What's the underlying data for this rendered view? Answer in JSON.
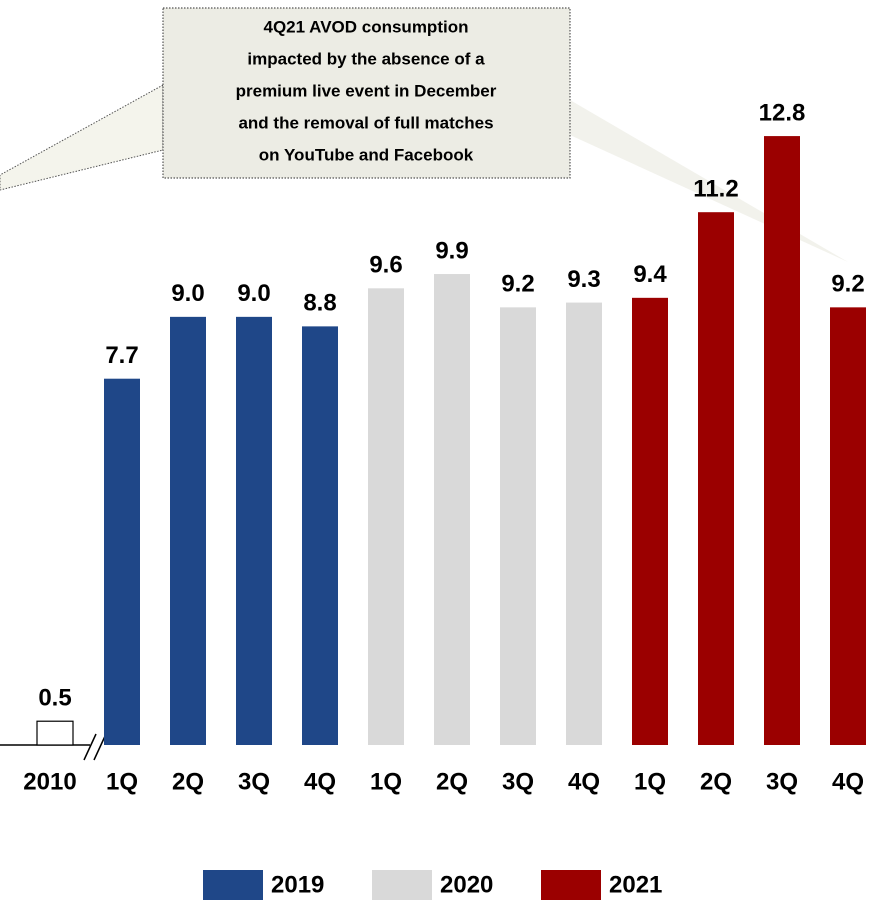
{
  "chart_data": {
    "type": "bar",
    "annotation": [
      "4Q21 AVOD consumption",
      "impacted by the absence of a",
      "premium live event in December",
      "and the removal of full matches",
      "on YouTube and Facebook"
    ],
    "categories": [
      "2010",
      "1Q",
      "2Q",
      "3Q",
      "4Q",
      "1Q",
      "2Q",
      "3Q",
      "4Q",
      "1Q",
      "2Q",
      "3Q",
      "4Q"
    ],
    "values": [
      0.5,
      7.7,
      9.0,
      9.0,
      8.8,
      9.6,
      9.9,
      9.2,
      9.3,
      9.4,
      11.2,
      12.8,
      9.2
    ],
    "value_labels": [
      "0.5",
      "7.7",
      "9.0",
      "9.0",
      "8.8",
      "9.6",
      "9.9",
      "9.2",
      "9.3",
      "9.4",
      "11.2",
      "12.8",
      "9.2"
    ],
    "colors": [
      "#ffffff",
      "#1f4788",
      "#1f4788",
      "#1f4788",
      "#1f4788",
      "#d9d9d9",
      "#d9d9d9",
      "#d9d9d9",
      "#d9d9d9",
      "#9b0000",
      "#9b0000",
      "#9b0000",
      "#9b0000"
    ],
    "legend": [
      {
        "name": "2019",
        "color": "#1f4788"
      },
      {
        "name": "2020",
        "color": "#d9d9d9"
      },
      {
        "name": "2021",
        "color": "#9b0000"
      }
    ],
    "ylim": [
      0,
      14
    ]
  }
}
